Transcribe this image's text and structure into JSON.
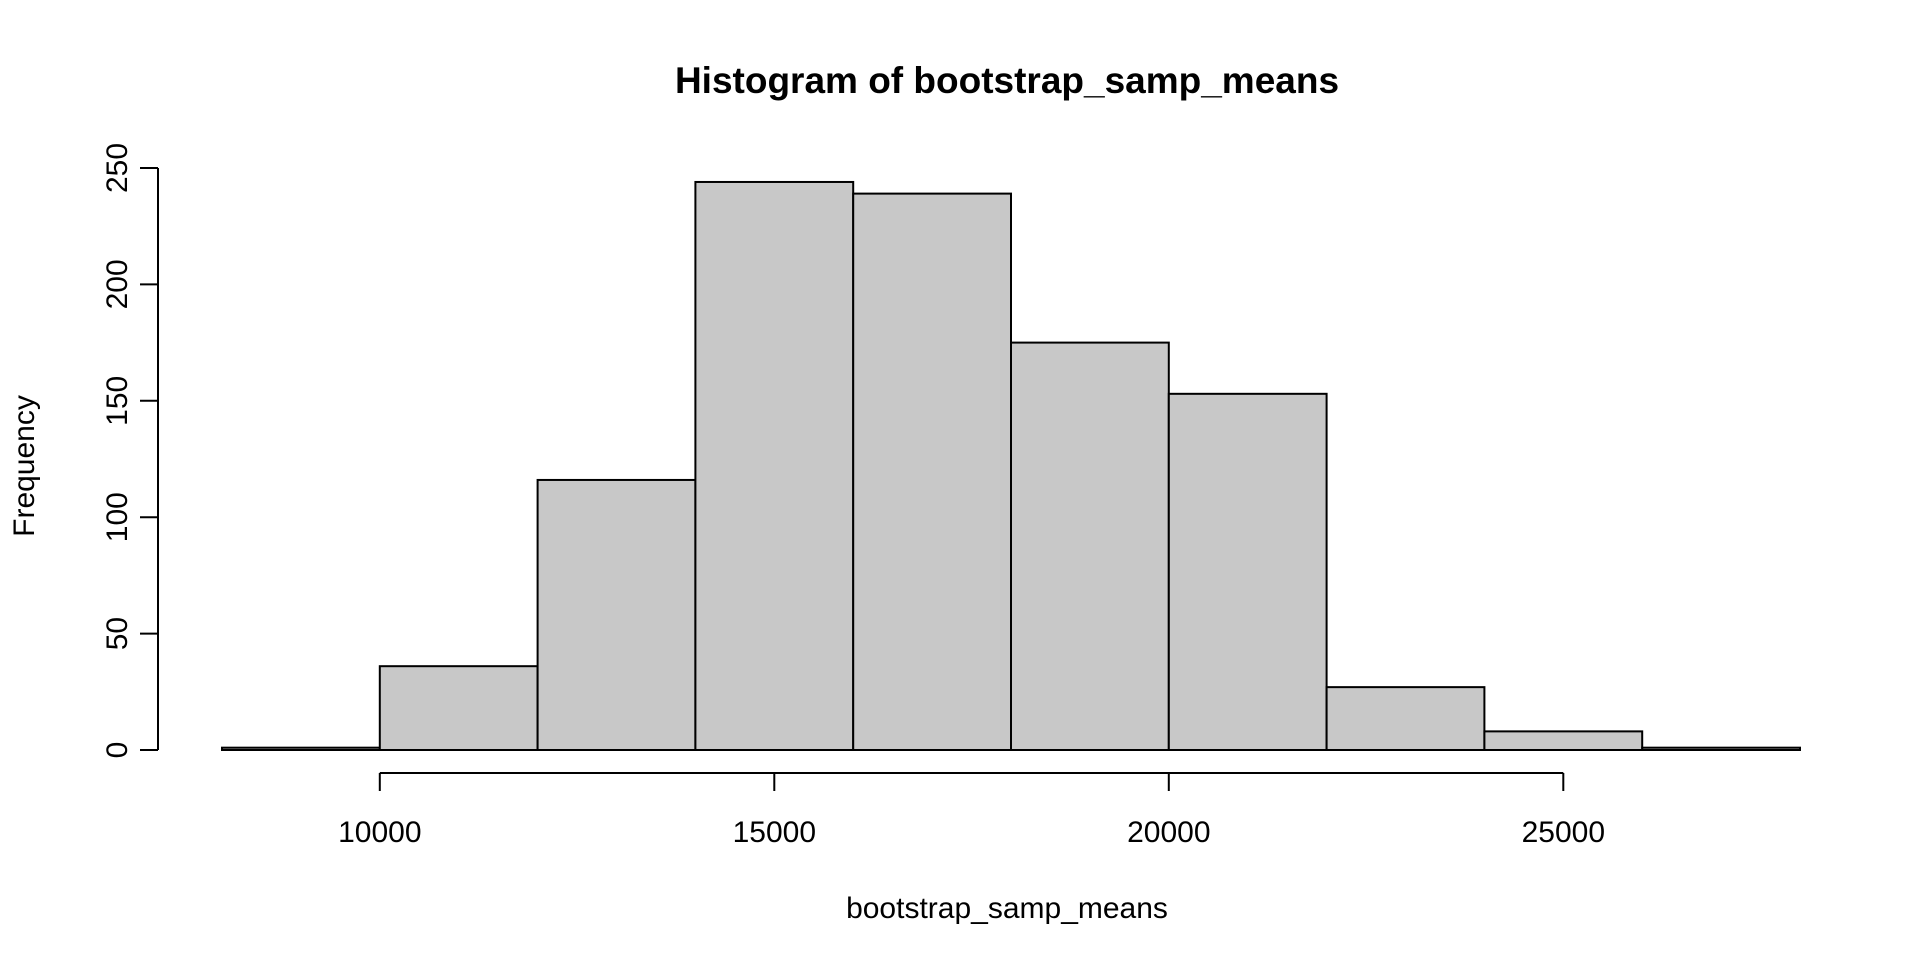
{
  "chart_data": {
    "type": "bar",
    "subtype": "histogram",
    "title": "Histogram of bootstrap_samp_means",
    "xlabel": "bootstrap_samp_means",
    "ylabel": "Frequency",
    "bins": [
      {
        "start": 8000,
        "end": 10000,
        "count": 1
      },
      {
        "start": 10000,
        "end": 12000,
        "count": 36
      },
      {
        "start": 12000,
        "end": 14000,
        "count": 116
      },
      {
        "start": 14000,
        "end": 16000,
        "count": 244
      },
      {
        "start": 16000,
        "end": 18000,
        "count": 239
      },
      {
        "start": 18000,
        "end": 20000,
        "count": 175
      },
      {
        "start": 20000,
        "end": 22000,
        "count": 153
      },
      {
        "start": 22000,
        "end": 24000,
        "count": 27
      },
      {
        "start": 24000,
        "end": 26000,
        "count": 8
      },
      {
        "start": 26000,
        "end": 28000,
        "count": 1
      }
    ],
    "xlim": [
      8000,
      28000
    ],
    "ylim": [
      0,
      250
    ],
    "x_ticks": [
      10000,
      15000,
      20000,
      25000
    ],
    "x_tick_labels": [
      "10000",
      "15000",
      "20000",
      "25000"
    ],
    "y_ticks": [
      0,
      50,
      100,
      150,
      200,
      250
    ],
    "y_tick_labels": [
      "0",
      "50",
      "100",
      "150",
      "200",
      "250"
    ],
    "bar_fill": "#c8c8c8",
    "bar_stroke": "#000000",
    "grid": false,
    "legend": "none"
  }
}
